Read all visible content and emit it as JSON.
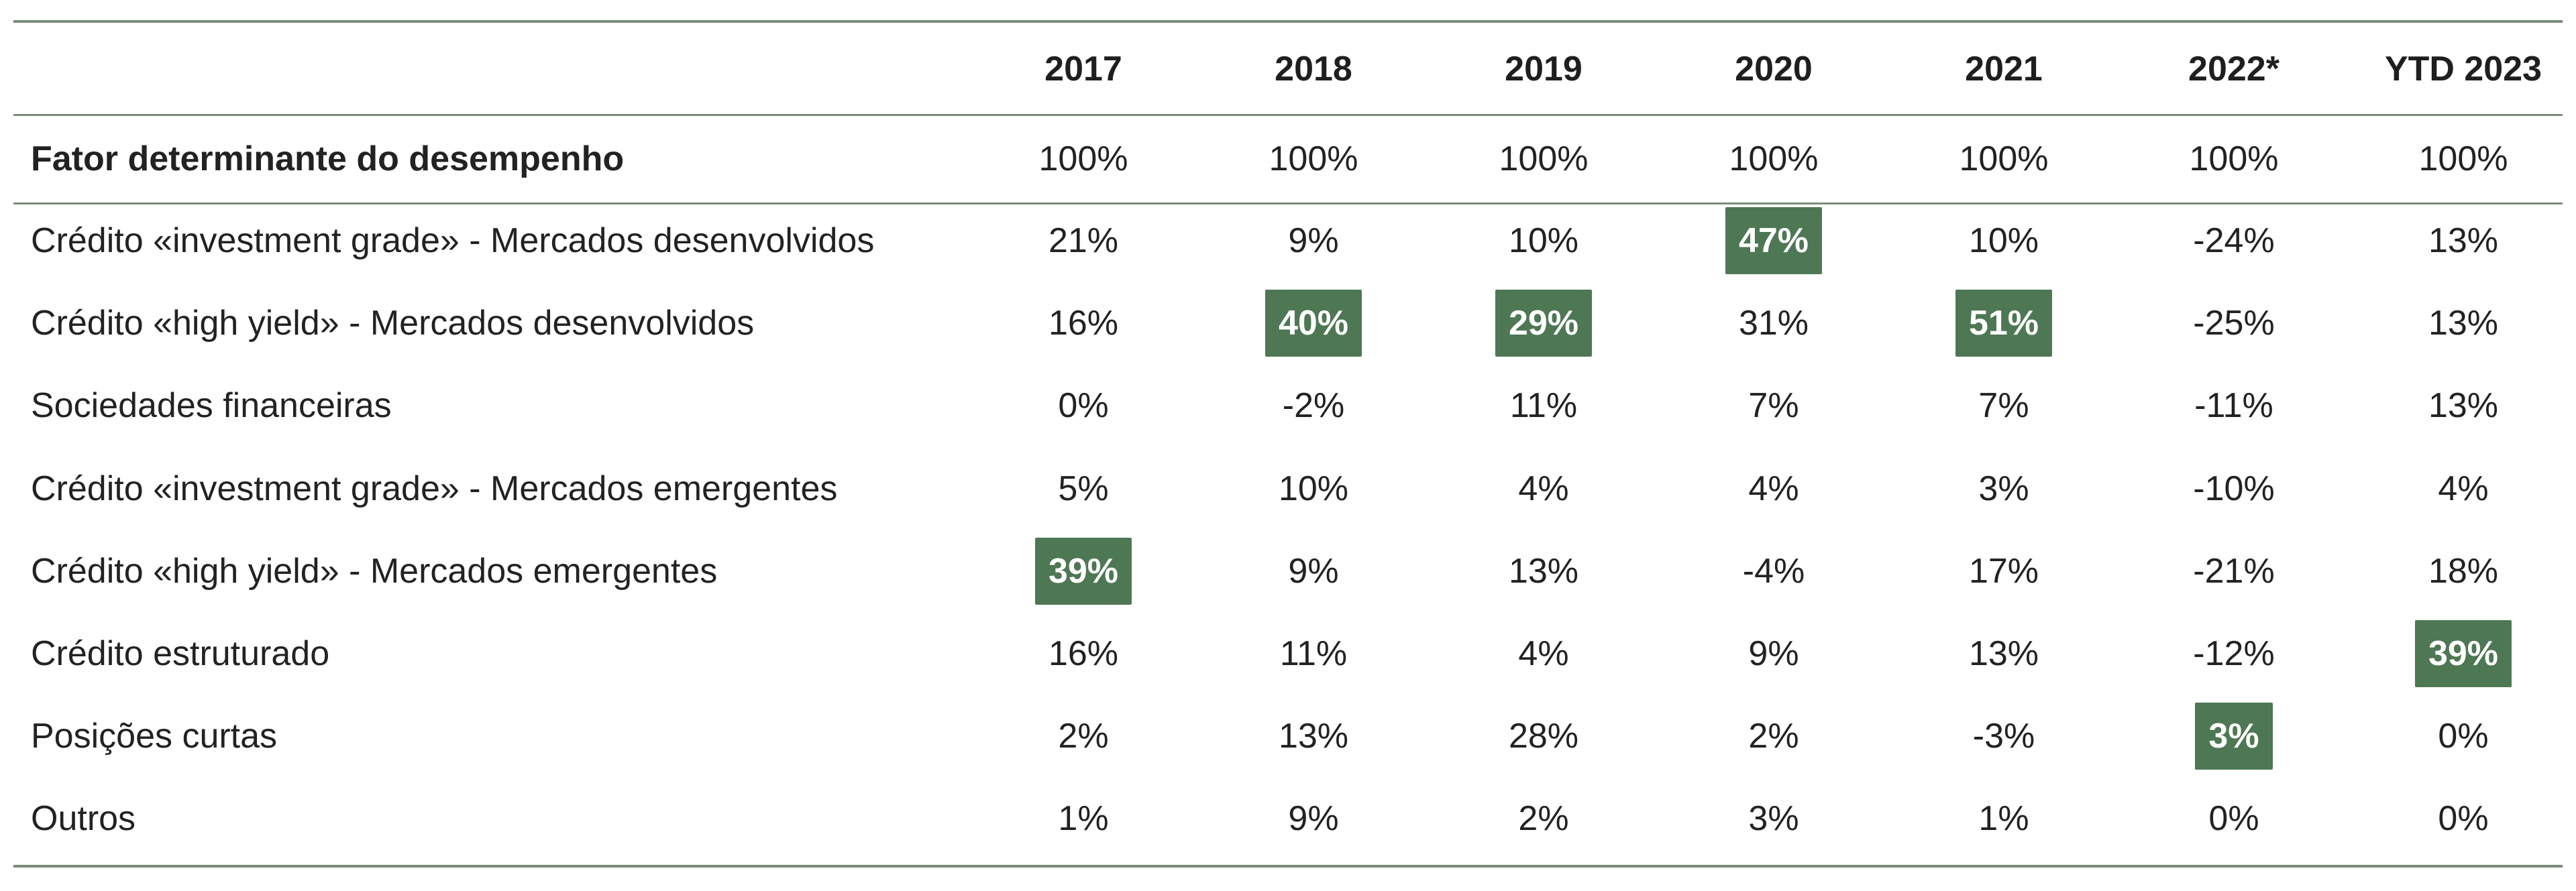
{
  "chart_data": {
    "type": "table",
    "columns": [
      "2017",
      "2018",
      "2019",
      "2020",
      "2021",
      "2022*",
      "YTD 2023"
    ],
    "header_label": "",
    "total_row": {
      "label": "Fator determinante do desempenho",
      "values": [
        "100%",
        "100%",
        "100%",
        "100%",
        "100%",
        "100%",
        "100%"
      ]
    },
    "rows": [
      {
        "label": "Crédito «investment grade» - Mercados desenvolvidos",
        "values": [
          "21%",
          "9%",
          "10%",
          "47%",
          "10%",
          "-24%",
          "13%"
        ],
        "highlight_col": 3
      },
      {
        "label": "Crédito «high yield» - Mercados desenvolvidos",
        "values": [
          "16%",
          "40%",
          "29%",
          "31%",
          "51%",
          "-25%",
          "13%"
        ],
        "highlight_cols": [
          1,
          2,
          4
        ]
      },
      {
        "label": "Sociedades financeiras",
        "values": [
          "0%",
          "-2%",
          "11%",
          "7%",
          "7%",
          "-11%",
          "13%"
        ],
        "highlight_cols": []
      },
      {
        "label": "Crédito «investment grade» - Mercados emergentes",
        "values": [
          "5%",
          "10%",
          "4%",
          "4%",
          "3%",
          "-10%",
          "4%"
        ],
        "highlight_cols": []
      },
      {
        "label": "Crédito «high yield» - Mercados emergentes",
        "values": [
          "39%",
          "9%",
          "13%",
          "-4%",
          "17%",
          "-21%",
          "18%"
        ],
        "highlight_cols": [
          0
        ]
      },
      {
        "label": "Crédito estruturado",
        "values": [
          "16%",
          "11%",
          "4%",
          "9%",
          "13%",
          "-12%",
          "39%"
        ],
        "highlight_cols": [
          6
        ]
      },
      {
        "label": "Posições curtas",
        "values": [
          "2%",
          "13%",
          "28%",
          "2%",
          "-3%",
          "3%",
          "0%"
        ],
        "highlight_cols": [
          5
        ]
      },
      {
        "label": "Outros",
        "values": [
          "1%",
          "9%",
          "2%",
          "3%",
          "1%",
          "0%",
          "0%"
        ],
        "highlight_cols": []
      }
    ]
  },
  "colors": {
    "highlight_bg": "#4e7754",
    "highlight_text": "#ffffff",
    "rule": "#7a8c78",
    "text": "#222222"
  }
}
